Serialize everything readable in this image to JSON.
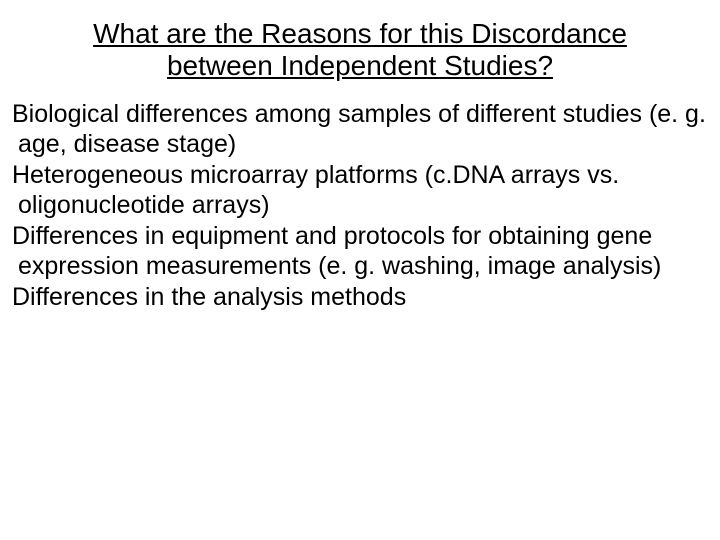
{
  "title_fontsize": 28,
  "body_fontsize": 25,
  "text_color": "#000000",
  "background_color": "#ffffff",
  "title": "What are the Reasons for this Discordance between Independent Studies?",
  "paragraphs": [
    "Biological differences among samples of different  studies (e. g. age, disease stage)",
    "Heterogeneous microarray platforms (c.DNA arrays  vs. oligonucleotide arrays)",
    "Differences in equipment and protocols for obtaining gene expression measurements (e. g.  washing, image analysis)",
    "Differences in the analysis methods"
  ]
}
